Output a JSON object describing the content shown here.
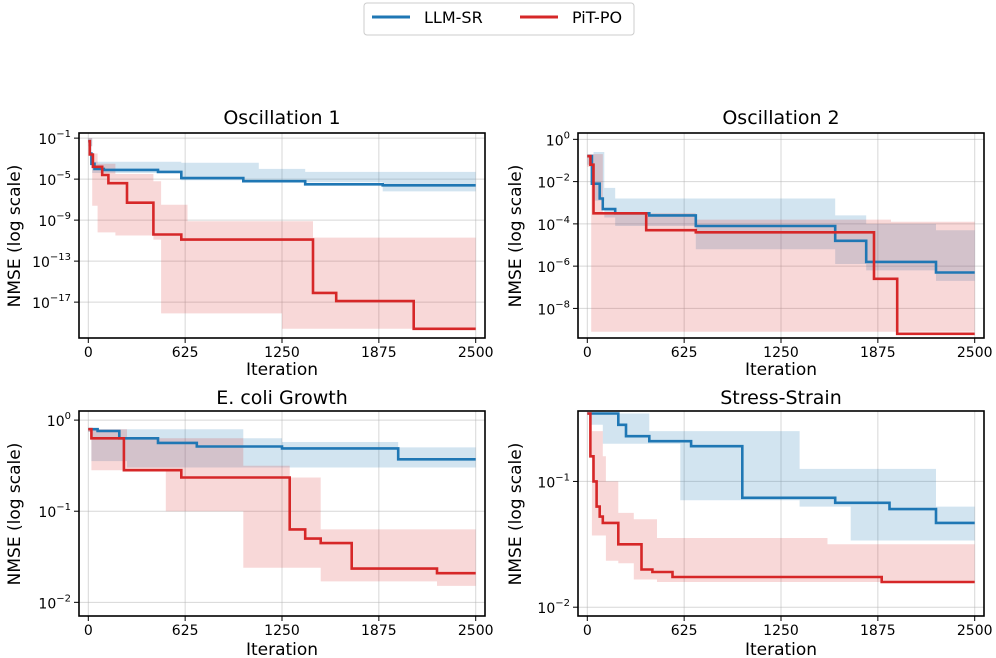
{
  "legend": {
    "placement": "top-center",
    "items": [
      {
        "name": "LLM-SR",
        "color": "#1f77b4"
      },
      {
        "name": "PiT-PO",
        "color": "#d62728"
      }
    ]
  },
  "chart_data": [
    {
      "type": "line",
      "title": "Oscillation 1",
      "xlabel": "Iteration",
      "ylabel": "NMSE (log scale)",
      "yscale": "log",
      "xlim": [
        -60,
        2560
      ],
      "ylim_log10": [
        -20.5,
        -0.5
      ],
      "xticks": [
        0,
        625,
        1250,
        1875,
        2500
      ],
      "xtick_labels": [
        "0",
        "625",
        "1250",
        "1875",
        "2500"
      ],
      "yticks_log10": [
        -1,
        -5,
        -9,
        -13,
        -17
      ],
      "ytick_labels": [
        "10^-1",
        "10^-5",
        "10^-9",
        "10^-13",
        "10^-17"
      ],
      "grid": true,
      "series": [
        {
          "name": "LLM-SR",
          "color": "#1f77b4",
          "steps": [
            [
              0,
              -1.3
            ],
            [
              10,
              -2.5
            ],
            [
              20,
              -3.5
            ],
            [
              40,
              -4.0
            ],
            [
              100,
              -4.1
            ],
            [
              450,
              -4.3
            ],
            [
              600,
              -4.9
            ],
            [
              1000,
              -5.2
            ],
            [
              1400,
              -5.5
            ],
            [
              1900,
              -5.6
            ],
            [
              2500,
              -5.6
            ]
          ],
          "band": [
            [
              0,
              -1.0,
              -1.8
            ],
            [
              25,
              -3.3,
              -4.4
            ],
            [
              600,
              -3.4,
              -5.1
            ],
            [
              1100,
              -4.0,
              -5.3
            ],
            [
              1400,
              -4.3,
              -5.3
            ],
            [
              1900,
              -4.3,
              -6.2
            ],
            [
              2500,
              -4.3,
              -6.2
            ]
          ]
        },
        {
          "name": "PiT-PO",
          "color": "#d62728",
          "steps": [
            [
              0,
              -1.3
            ],
            [
              10,
              -2.6
            ],
            [
              30,
              -3.8
            ],
            [
              90,
              -4.6
            ],
            [
              130,
              -5.4
            ],
            [
              250,
              -7.3
            ],
            [
              420,
              -10.4
            ],
            [
              600,
              -10.9
            ],
            [
              1450,
              -16.1
            ],
            [
              1600,
              -16.9
            ],
            [
              2100,
              -19.6
            ],
            [
              2500,
              -19.6
            ]
          ],
          "band": [
            [
              0,
              -1.0,
              -1.8
            ],
            [
              25,
              -2.5,
              -7.6
            ],
            [
              60,
              -3.5,
              -10.2
            ],
            [
              175,
              -4.5,
              -10.5
            ],
            [
              420,
              -5.2,
              -10.9
            ],
            [
              470,
              -7.5,
              -18.1
            ],
            [
              640,
              -9.1,
              -18.1
            ],
            [
              1250,
              -9.1,
              -19.6
            ],
            [
              1450,
              -10.7,
              -19.6
            ],
            [
              2500,
              -10.7,
              -19.6
            ]
          ]
        }
      ]
    },
    {
      "type": "line",
      "title": "Oscillation 2",
      "xlabel": "Iteration",
      "ylabel": "NMSE  (log scale)",
      "yscale": "log",
      "xlim": [
        -60,
        2560
      ],
      "ylim_log10": [
        -9.4,
        0.3
      ],
      "xticks": [
        0,
        625,
        1250,
        1875,
        2500
      ],
      "xtick_labels": [
        "0",
        "625",
        "1250",
        "1875",
        "2500"
      ],
      "yticks_log10": [
        0,
        -2,
        -4,
        -6,
        -8
      ],
      "ytick_labels": [
        "10^0",
        "10^-2",
        "10^-4",
        "10^-6",
        "10^-8"
      ],
      "grid": true,
      "series": [
        {
          "name": "LLM-SR",
          "color": "#1f77b4",
          "steps": [
            [
              0,
              -0.8
            ],
            [
              30,
              -2.1
            ],
            [
              80,
              -2.8
            ],
            [
              100,
              -3.3
            ],
            [
              180,
              -3.5
            ],
            [
              400,
              -3.6
            ],
            [
              700,
              -4.1
            ],
            [
              1600,
              -4.8
            ],
            [
              1800,
              -5.8
            ],
            [
              2250,
              -6.3
            ],
            [
              2500,
              -6.3
            ]
          ],
          "band": [
            [
              0,
              -0.7,
              -1.2
            ],
            [
              40,
              -0.6,
              -2.9
            ],
            [
              110,
              -2.3,
              -3.7
            ],
            [
              180,
              -2.8,
              -4.1
            ],
            [
              700,
              -2.8,
              -5.2
            ],
            [
              1600,
              -3.6,
              -5.9
            ],
            [
              1800,
              -4.0,
              -6.2
            ],
            [
              2250,
              -4.3,
              -6.7
            ],
            [
              2500,
              -4.3,
              -6.7
            ]
          ]
        },
        {
          "name": "PiT-PO",
          "color": "#d62728",
          "steps": [
            [
              0,
              -0.8
            ],
            [
              20,
              -1.2
            ],
            [
              40,
              -3.5
            ],
            [
              210,
              -3.5
            ],
            [
              380,
              -4.3
            ],
            [
              700,
              -4.4
            ],
            [
              1850,
              -6.6
            ],
            [
              2000,
              -9.2
            ],
            [
              2500,
              -9.2
            ]
          ],
          "band": [
            [
              0,
              -0.7,
              -1.3
            ],
            [
              25,
              -0.7,
              -9.1
            ],
            [
              100,
              -3.5,
              -9.1
            ],
            [
              250,
              -3.5,
              -9.1
            ],
            [
              700,
              -3.8,
              -9.1
            ],
            [
              1560,
              -3.8,
              -9.1
            ],
            [
              1960,
              -3.9,
              -9.1
            ],
            [
              2020,
              -3.9,
              -9.1
            ],
            [
              2250,
              -3.9,
              -9.1
            ]
          ]
        }
      ]
    },
    {
      "type": "line",
      "title": "E. coli Growth",
      "xlabel": "Iteration",
      "ylabel": "NMSE (log scale)",
      "yscale": "log",
      "xlim": [
        -60,
        2560
      ],
      "ylim_log10": [
        -2.15,
        0.1
      ],
      "xticks": [
        0,
        625,
        1250,
        1875,
        2500
      ],
      "xtick_labels": [
        "0",
        "625",
        "1250",
        "1875",
        "2500"
      ],
      "yticks_log10": [
        0,
        -1,
        -2
      ],
      "ytick_labels": [
        "10^0",
        "10^-1",
        "10^-2"
      ],
      "grid": true,
      "series": [
        {
          "name": "LLM-SR",
          "color": "#1f77b4",
          "steps": [
            [
              0,
              -0.1
            ],
            [
              60,
              -0.12
            ],
            [
              200,
              -0.2
            ],
            [
              450,
              -0.25
            ],
            [
              700,
              -0.29
            ],
            [
              1250,
              -0.31
            ],
            [
              2000,
              -0.43
            ],
            [
              2500,
              -0.43
            ]
          ],
          "band": [
            [
              0,
              -0.09,
              -0.13
            ],
            [
              20,
              -0.1,
              -0.45
            ],
            [
              250,
              -0.1,
              -0.52
            ],
            [
              1000,
              -0.2,
              -0.52
            ],
            [
              1250,
              -0.24,
              -0.52
            ],
            [
              2000,
              -0.3,
              -0.52
            ],
            [
              2500,
              -0.3,
              -0.52
            ]
          ]
        },
        {
          "name": "PiT-PO",
          "color": "#d62728",
          "steps": [
            [
              0,
              -0.1
            ],
            [
              20,
              -0.2
            ],
            [
              230,
              -0.55
            ],
            [
              600,
              -0.63
            ],
            [
              1300,
              -1.2
            ],
            [
              1400,
              -1.3
            ],
            [
              1500,
              -1.35
            ],
            [
              1700,
              -1.63
            ],
            [
              2250,
              -1.68
            ],
            [
              2500,
              -1.68
            ]
          ],
          "band": [
            [
              0,
              -0.09,
              -0.13
            ],
            [
              20,
              -0.1,
              -0.55
            ],
            [
              250,
              -0.2,
              -0.55
            ],
            [
              500,
              -0.2,
              -1.0
            ],
            [
              1000,
              -0.5,
              -1.62
            ],
            [
              1300,
              -0.63,
              -1.62
            ],
            [
              1500,
              -1.2,
              -1.77
            ],
            [
              2250,
              -1.2,
              -1.82
            ],
            [
              2500,
              -1.2,
              -1.82
            ]
          ]
        }
      ]
    },
    {
      "type": "line",
      "title": "Stress-Strain",
      "xlabel": "Iteration",
      "ylabel": "NMSE  (log scale)",
      "yscale": "log",
      "xlim": [
        -60,
        2560
      ],
      "ylim_log10": [
        -2.07,
        -0.44
      ],
      "xticks": [
        0,
        625,
        1250,
        1875,
        2500
      ],
      "xtick_labels": [
        "0",
        "625",
        "1250",
        "1875",
        "2500"
      ],
      "yticks_log10": [
        -1,
        -2
      ],
      "ytick_labels": [
        "10^-1",
        "10^-2"
      ],
      "grid": true,
      "series": [
        {
          "name": "LLM-SR",
          "color": "#1f77b4",
          "steps": [
            [
              0,
              -0.46
            ],
            [
              200,
              -0.55
            ],
            [
              250,
              -0.64
            ],
            [
              400,
              -0.68
            ],
            [
              670,
              -0.72
            ],
            [
              1000,
              -1.13
            ],
            [
              1600,
              -1.17
            ],
            [
              1950,
              -1.22
            ],
            [
              2250,
              -1.33
            ],
            [
              2500,
              -1.33
            ]
          ],
          "band": [
            [
              0,
              -0.46,
              -0.46
            ],
            [
              20,
              -0.46,
              -0.55
            ],
            [
              100,
              -0.46,
              -0.7
            ],
            [
              400,
              -0.6,
              -0.7
            ],
            [
              600,
              -0.6,
              -1.15
            ],
            [
              1370,
              -0.9,
              -1.2
            ],
            [
              1700,
              -0.9,
              -1.47
            ],
            [
              2250,
              -1.2,
              -1.47
            ],
            [
              2500,
              -1.2,
              -1.47
            ]
          ]
        },
        {
          "name": "PiT-PO",
          "color": "#d62728",
          "steps": [
            [
              0,
              -0.46
            ],
            [
              20,
              -0.8
            ],
            [
              40,
              -1.0
            ],
            [
              60,
              -1.2
            ],
            [
              80,
              -1.28
            ],
            [
              100,
              -1.33
            ],
            [
              200,
              -1.5
            ],
            [
              350,
              -1.7
            ],
            [
              420,
              -1.72
            ],
            [
              550,
              -1.76
            ],
            [
              1900,
              -1.8
            ],
            [
              2500,
              -1.8
            ]
          ],
          "band": [
            [
              0,
              -0.46,
              -0.46
            ],
            [
              30,
              -0.6,
              -1.43
            ],
            [
              80,
              -0.6,
              -1.43
            ],
            [
              100,
              -0.8,
              -1.43
            ],
            [
              120,
              -1.0,
              -1.63
            ],
            [
              200,
              -1.25,
              -1.65
            ],
            [
              300,
              -1.3,
              -1.78
            ],
            [
              450,
              -1.45,
              -1.8
            ],
            [
              1400,
              -1.45,
              -1.8
            ],
            [
              1550,
              -1.5,
              -1.8
            ],
            [
              2500,
              -1.75,
              -1.85
            ]
          ]
        }
      ]
    }
  ]
}
